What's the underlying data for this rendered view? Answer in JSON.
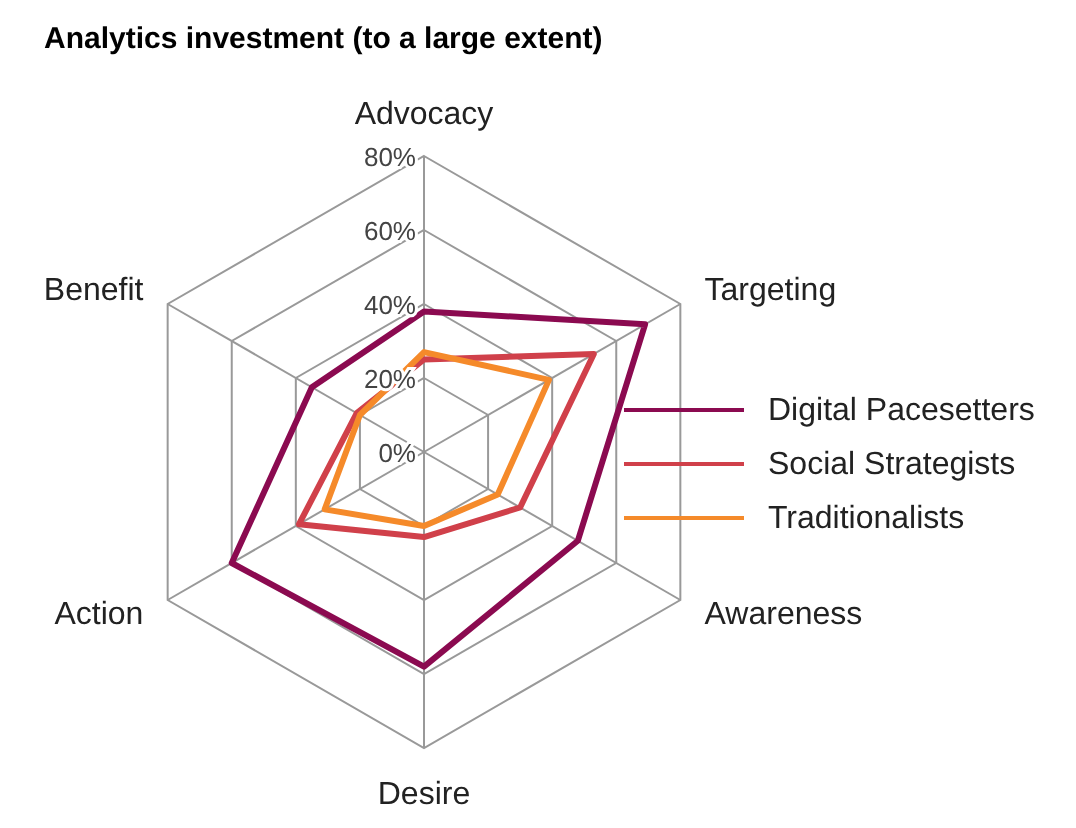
{
  "chart_data": {
    "type": "radar",
    "title": "Analytics investment (to a large extent)",
    "categories": [
      "Advocacy",
      "Targeting",
      "Awareness",
      "Desire",
      "Action",
      "Benefit"
    ],
    "ylim": [
      0,
      80
    ],
    "yticks": [
      {
        "value": 0,
        "label": "0%"
      },
      {
        "value": 20,
        "label": "20%"
      },
      {
        "value": 40,
        "label": "40%"
      },
      {
        "value": 60,
        "label": "60%"
      },
      {
        "value": 80,
        "label": "80%"
      }
    ],
    "grid": true,
    "legend": "right",
    "series": [
      {
        "name": "Digital Pacesetters",
        "color": "#8b0a50",
        "values": [
          38,
          69,
          48,
          58,
          60,
          35
        ]
      },
      {
        "name": "Social Strategists",
        "color": "#d0404a",
        "values": [
          25,
          53,
          30,
          23,
          39,
          21
        ]
      },
      {
        "name": "Traditionalists",
        "color": "#f58a2a",
        "values": [
          27,
          39,
          23,
          20,
          31,
          20
        ]
      }
    ]
  }
}
